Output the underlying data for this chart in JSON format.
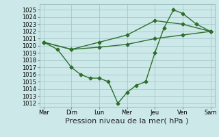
{
  "x_labels": [
    "Mar",
    "Dim",
    "Lun",
    "Mer",
    "Jeu",
    "Ven",
    "Sam"
  ],
  "x_positions": [
    0,
    1,
    2,
    3,
    4,
    5,
    6
  ],
  "line1_nearly_flat": {
    "x": [
      0,
      1,
      2,
      3,
      4,
      5,
      6
    ],
    "y": [
      1020.5,
      1019.5,
      1019.8,
      1020.2,
      1021.0,
      1021.5,
      1022.0
    ],
    "color": "#2d6e2d",
    "marker": "D",
    "markersize": 2.5,
    "linewidth": 1.0
  },
  "line2_mid": {
    "x": [
      0,
      1,
      2,
      3,
      4,
      5,
      6
    ],
    "y": [
      1020.5,
      1019.5,
      1020.5,
      1021.5,
      1023.5,
      1023.0,
      1022.0
    ],
    "color": "#2d6e2d",
    "marker": "D",
    "markersize": 2.5,
    "linewidth": 1.0
  },
  "line3_zigzag": {
    "x": [
      0,
      0.5,
      1.0,
      1.33,
      1.67,
      2.0,
      2.33,
      2.67,
      3.0,
      3.33,
      3.67,
      4.0,
      4.33,
      4.67,
      5.0,
      5.5,
      6.0
    ],
    "y": [
      1020.5,
      1019.5,
      1017.0,
      1016.0,
      1015.5,
      1015.5,
      1015.0,
      1012.0,
      1013.5,
      1014.5,
      1015.0,
      1019.0,
      1022.5,
      1025.0,
      1024.5,
      1023.0,
      1022.0
    ],
    "color": "#2d6e2d",
    "marker": "D",
    "markersize": 2.5,
    "linewidth": 1.0
  },
  "ylim": [
    1011.5,
    1025.8
  ],
  "yticks": [
    1012,
    1013,
    1014,
    1015,
    1016,
    1017,
    1018,
    1019,
    1020,
    1021,
    1022,
    1023,
    1024,
    1025
  ],
  "xlabel": "Pression niveau de la mer( hPa )",
  "bg_color": "#cce8e8",
  "grid_color": "#9fc4c4",
  "line_color": "#2d6e2d",
  "tick_label_fontsize": 6,
  "xlabel_fontsize": 8
}
